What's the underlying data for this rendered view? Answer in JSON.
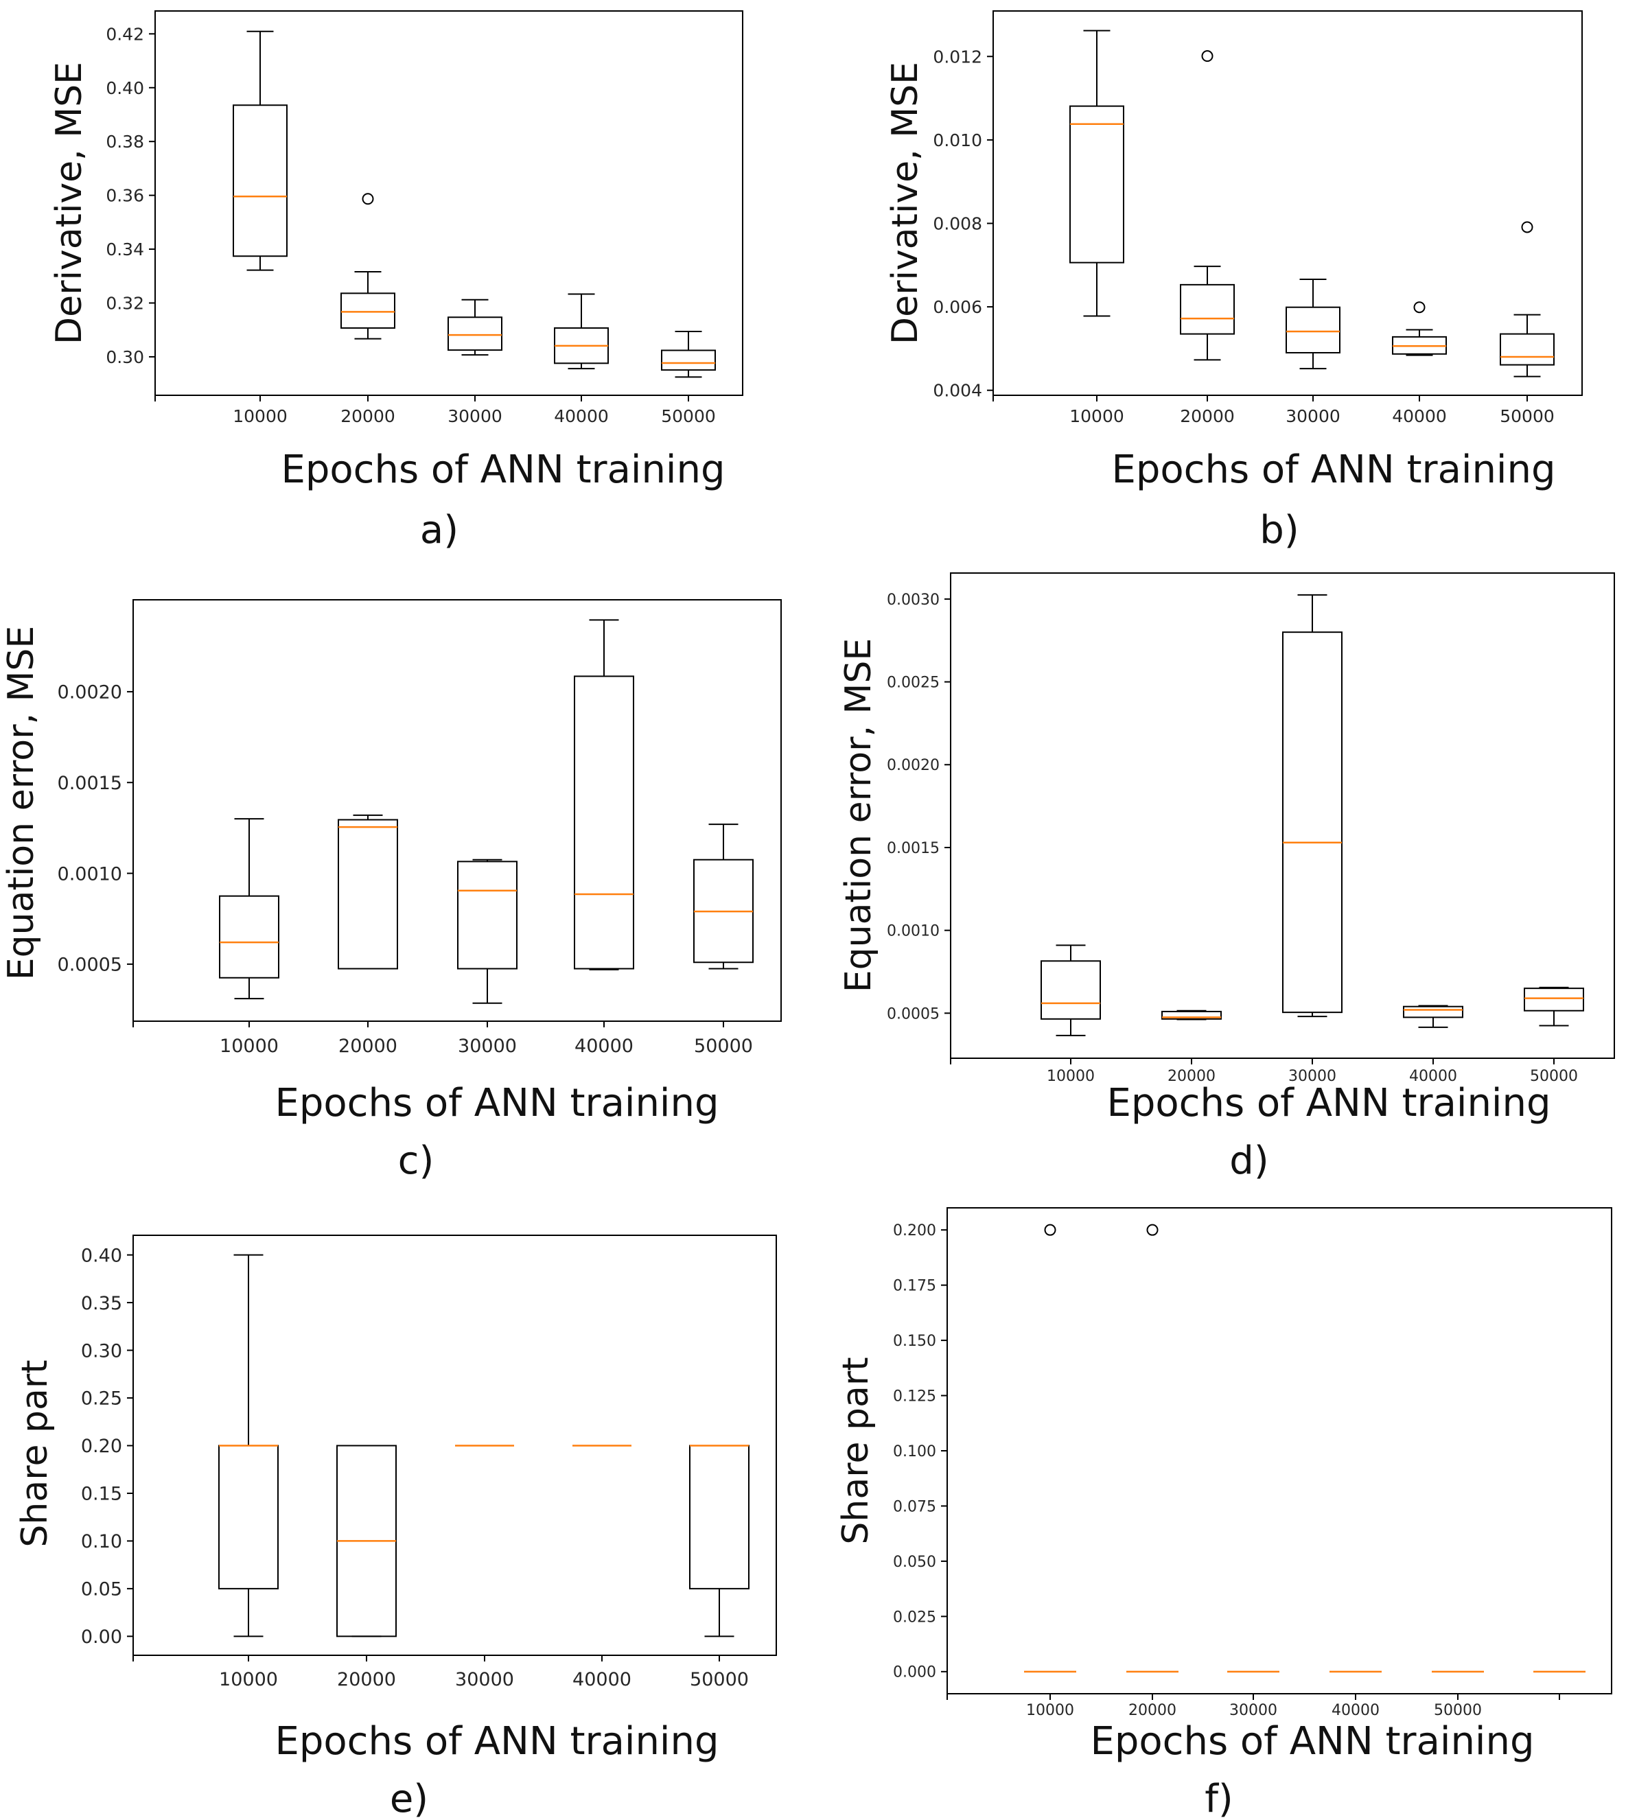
{
  "chart_data": [
    {
      "type": "boxplot",
      "panel_label": "a)",
      "xlabel": "Epochs of ANN training",
      "ylabel": "Derivative, MSE",
      "categories": [
        "10000",
        "20000",
        "30000",
        "40000",
        "50000"
      ],
      "yticks": [
        "0.30",
        "0.32",
        "0.34",
        "0.36",
        "0.38",
        "0.40",
        "0.42"
      ],
      "ylim": [
        0.2857,
        0.4285
      ],
      "boxes": [
        {
          "category": "10000",
          "whislo": 0.3322,
          "q1": 0.3374,
          "med": 0.3596,
          "q3": 0.3935,
          "whishi": 0.4209,
          "fliers": []
        },
        {
          "category": "20000",
          "whislo": 0.3067,
          "q1": 0.3107,
          "med": 0.3167,
          "q3": 0.3236,
          "whishi": 0.3316,
          "fliers": [
            0.3587
          ]
        },
        {
          "category": "30000",
          "whislo": 0.3007,
          "q1": 0.3025,
          "med": 0.3081,
          "q3": 0.3147,
          "whishi": 0.3212,
          "fliers": []
        },
        {
          "category": "40000",
          "whislo": 0.2956,
          "q1": 0.2976,
          "med": 0.3041,
          "q3": 0.3107,
          "whishi": 0.3233,
          "fliers": []
        },
        {
          "category": "50000",
          "whislo": 0.2925,
          "q1": 0.2951,
          "med": 0.2977,
          "q3": 0.3024,
          "whishi": 0.3094,
          "fliers": []
        }
      ]
    },
    {
      "type": "boxplot",
      "panel_label": "b)",
      "xlabel": "Epochs of ANN training",
      "ylabel": "Derivative, MSE",
      "categories": [
        "10000",
        "20000",
        "30000",
        "40000",
        "50000"
      ],
      "yticks": [
        "0.004",
        "0.006",
        "0.008",
        "0.010",
        "0.012"
      ],
      "ylim": [
        0.00388,
        0.01309
      ],
      "boxes": [
        {
          "category": "10000",
          "whislo": 0.00578,
          "q1": 0.00706,
          "med": 0.01038,
          "q3": 0.01081,
          "whishi": 0.01262,
          "fliers": []
        },
        {
          "category": "20000",
          "whislo": 0.00473,
          "q1": 0.00535,
          "med": 0.00572,
          "q3": 0.00653,
          "whishi": 0.00697,
          "fliers": [
            0.01201
          ]
        },
        {
          "category": "30000",
          "whislo": 0.00452,
          "q1": 0.0049,
          "med": 0.00541,
          "q3": 0.00599,
          "whishi": 0.00666,
          "fliers": []
        },
        {
          "category": "40000",
          "whislo": 0.00484,
          "q1": 0.00487,
          "med": 0.00506,
          "q3": 0.00528,
          "whishi": 0.00545,
          "fliers": [
            0.00599
          ]
        },
        {
          "category": "50000",
          "whislo": 0.00433,
          "q1": 0.00461,
          "med": 0.0048,
          "q3": 0.00535,
          "whishi": 0.00581,
          "fliers": [
            0.00791
          ]
        }
      ]
    },
    {
      "type": "boxplot",
      "panel_label": "c)",
      "xlabel": "Epochs of ANN training",
      "ylabel": "Equation error, MSE",
      "categories": [
        "10000",
        "20000",
        "30000",
        "40000",
        "50000"
      ],
      "yticks": [
        "0.0005",
        "0.0010",
        "0.0015",
        "0.0020"
      ],
      "ylim": [
        0.000186,
        0.002506
      ],
      "boxes": [
        {
          "category": "10000",
          "whislo": 0.00031,
          "q1": 0.000425,
          "med": 0.00062,
          "q3": 0.000875,
          "whishi": 0.0013,
          "fliers": []
        },
        {
          "category": "20000",
          "whislo": 0.000475,
          "q1": 0.000475,
          "med": 0.001255,
          "q3": 0.001295,
          "whishi": 0.00132,
          "fliers": []
        },
        {
          "category": "30000",
          "whislo": 0.000285,
          "q1": 0.000475,
          "med": 0.000905,
          "q3": 0.001065,
          "whishi": 0.001075,
          "fliers": []
        },
        {
          "category": "40000",
          "whislo": 0.00047,
          "q1": 0.000475,
          "med": 0.000885,
          "q3": 0.002085,
          "whishi": 0.002395,
          "fliers": []
        },
        {
          "category": "50000",
          "whislo": 0.000475,
          "q1": 0.00051,
          "med": 0.00079,
          "q3": 0.001075,
          "whishi": 0.00127,
          "fliers": []
        }
      ]
    },
    {
      "type": "boxplot",
      "panel_label": "d)",
      "xlabel": "Epochs of ANN training",
      "ylabel": "Equation error, MSE",
      "categories": [
        "10000",
        "20000",
        "30000",
        "40000",
        "50000"
      ],
      "yticks": [
        "0.0005",
        "0.0010",
        "0.0015",
        "0.0020",
        "0.0025",
        "0.0030"
      ],
      "ylim": [
        0.000228,
        0.003157
      ],
      "boxes": [
        {
          "category": "10000",
          "whislo": 0.000365,
          "q1": 0.000465,
          "med": 0.00056,
          "q3": 0.000815,
          "whishi": 0.00091,
          "fliers": []
        },
        {
          "category": "20000",
          "whislo": 0.000462,
          "q1": 0.000465,
          "med": 0.000475,
          "q3": 0.00051,
          "whishi": 0.000515,
          "fliers": []
        },
        {
          "category": "30000",
          "whislo": 0.00048,
          "q1": 0.000505,
          "med": 0.00153,
          "q3": 0.0028,
          "whishi": 0.003025,
          "fliers": []
        },
        {
          "category": "40000",
          "whislo": 0.000415,
          "q1": 0.000475,
          "med": 0.00052,
          "q3": 0.00054,
          "whishi": 0.000545,
          "fliers": []
        },
        {
          "category": "50000",
          "whislo": 0.000425,
          "q1": 0.000515,
          "med": 0.00059,
          "q3": 0.00065,
          "whishi": 0.000655,
          "fliers": []
        }
      ]
    },
    {
      "type": "boxplot",
      "panel_label": "e)",
      "xlabel": "Epochs of ANN training",
      "ylabel": "Share part",
      "categories": [
        "10000",
        "20000",
        "30000",
        "40000",
        "50000"
      ],
      "yticks": [
        "0.00",
        "0.05",
        "0.10",
        "0.15",
        "0.20",
        "0.25",
        "0.30",
        "0.35",
        "0.40"
      ],
      "ylim": [
        -0.0199,
        0.4206
      ],
      "boxes": [
        {
          "category": "10000",
          "whislo": 0.0,
          "q1": 0.05,
          "med": 0.2,
          "q3": 0.2,
          "whishi": 0.4,
          "fliers": []
        },
        {
          "category": "20000",
          "whislo": 0.0,
          "q1": 0.0,
          "med": 0.1,
          "q3": 0.2,
          "whishi": 0.2,
          "fliers": []
        },
        {
          "category": "30000",
          "whislo": 0.2,
          "q1": 0.2,
          "med": 0.2,
          "q3": 0.2,
          "whishi": 0.2,
          "fliers": []
        },
        {
          "category": "40000",
          "whislo": 0.2,
          "q1": 0.2,
          "med": 0.2,
          "q3": 0.2,
          "whishi": 0.2,
          "fliers": []
        },
        {
          "category": "50000",
          "whislo": 0.0,
          "q1": 0.05,
          "med": 0.2,
          "q3": 0.2,
          "whishi": 0.2,
          "fliers": []
        }
      ]
    },
    {
      "type": "boxplot",
      "panel_label": "f)",
      "xlabel": "Epochs of ANN training",
      "ylabel": "Share part",
      "categories": [
        "10000",
        "20000",
        "30000",
        "40000",
        "50000",
        ""
      ],
      "yticks": [
        "0.000",
        "0.025",
        "0.050",
        "0.075",
        "0.100",
        "0.125",
        "0.150",
        "0.175",
        "0.200"
      ],
      "ylim": [
        -0.01,
        0.21
      ],
      "boxes": [
        {
          "category": "10000",
          "whislo": 0.0,
          "q1": 0.0,
          "med": 0.0,
          "q3": 0.0,
          "whishi": 0.0,
          "fliers": [
            0.2
          ]
        },
        {
          "category": "20000",
          "whislo": 0.0,
          "q1": 0.0,
          "med": 0.0,
          "q3": 0.0,
          "whishi": 0.0,
          "fliers": [
            0.2
          ]
        },
        {
          "category": "30000",
          "whislo": 0.0,
          "q1": 0.0,
          "med": 0.0,
          "q3": 0.0,
          "whishi": 0.0,
          "fliers": []
        },
        {
          "category": "40000",
          "whislo": 0.0,
          "q1": 0.0,
          "med": 0.0,
          "q3": 0.0,
          "whishi": 0.0,
          "fliers": []
        },
        {
          "category": "50000",
          "whislo": 0.0,
          "q1": 0.0,
          "med": 0.0,
          "q3": 0.0,
          "whishi": 0.0,
          "fliers": []
        },
        {
          "category": "",
          "whislo": 0.0,
          "q1": 0.0,
          "med": 0.0,
          "q3": 0.0,
          "whishi": 0.0,
          "fliers": []
        }
      ]
    }
  ],
  "colors": {
    "box": "#000000",
    "median": "#ff7f0e",
    "axes": "#000000",
    "text": "#111111"
  }
}
